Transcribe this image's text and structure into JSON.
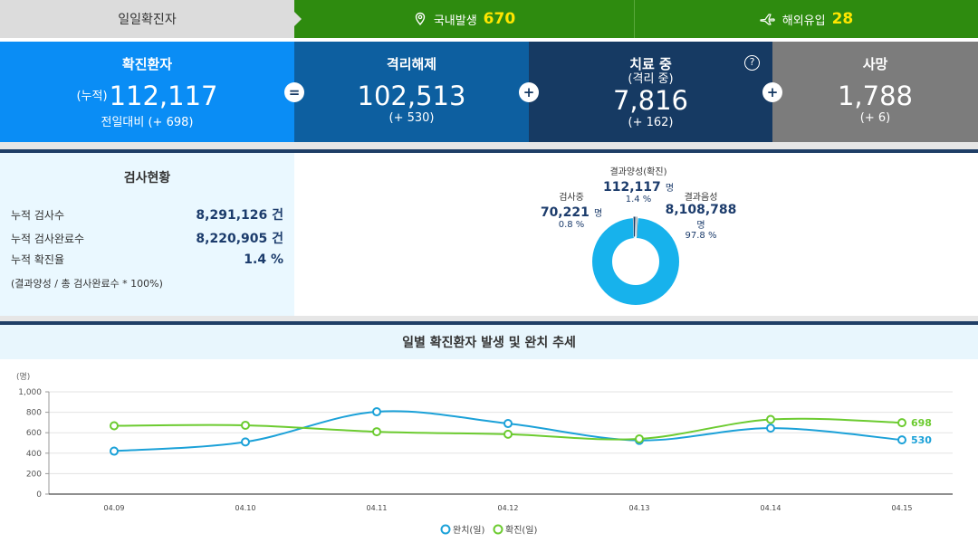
{
  "topbar": {
    "label": "일일확진자",
    "domestic": {
      "label": "국내발생",
      "value": "670",
      "icon": "map-pin-icon"
    },
    "overseas": {
      "label": "해외유입",
      "value": "28",
      "icon": "airplane-icon"
    }
  },
  "summary": {
    "confirmed": {
      "title": "확진환자",
      "prefix": "(누적)",
      "value": "112,117",
      "delta": "전일대비 (+ 698)"
    },
    "released": {
      "title": "격리해제",
      "value": "102,513",
      "delta": "(+ 530)"
    },
    "treating": {
      "title": "치료 중",
      "subtitle": "(격리 중)",
      "value": "7,816",
      "delta": "(+ 162)",
      "help": "?"
    },
    "deaths": {
      "title": "사망",
      "value": "1,788",
      "delta": "(+ 6)"
    },
    "operators": {
      "equals": "=",
      "plus": "+"
    },
    "colors": {
      "confirmed": "#0a8df5",
      "released": "#0d5fa0",
      "treating": "#163a63",
      "deaths": "#7c7c7c"
    }
  },
  "tests": {
    "title": "검사현황",
    "rows": [
      {
        "label": "누적 검사수",
        "value": "8,291,126 건"
      },
      {
        "label": "누적 검사완료수",
        "value": "8,220,905 건"
      },
      {
        "label": "누적 확진율",
        "value": "1.4 %"
      }
    ],
    "note": "(결과양성 / 총 검사완료수 * 100%)"
  },
  "donut": {
    "positive": {
      "label": "결과양성(확진)",
      "value": "112,117",
      "unit": "명",
      "pct": "1.4 %"
    },
    "testing": {
      "label": "검사중",
      "value": "70,221",
      "unit": "명",
      "pct": "0.8 %"
    },
    "negative": {
      "label": "결과음성",
      "value": "8,108,788",
      "unit": "명",
      "pct": "97.8 %"
    }
  },
  "trend": {
    "title": "일별 확진환자 발생 및 완치 추세",
    "legend": {
      "released": "완치(일)",
      "confirmed": "확진(일)"
    },
    "end_labels": {
      "released": "530",
      "confirmed": "698"
    }
  },
  "chart_data": {
    "type": "line",
    "ylabel": "(명)",
    "ylim": [
      0,
      1000
    ],
    "yticks": [
      "0",
      "200",
      "400",
      "600",
      "800",
      "1,000"
    ],
    "categories": [
      "04.09",
      "04.10",
      "04.11",
      "04.12",
      "04.13",
      "04.14",
      "04.15"
    ],
    "series": [
      {
        "name": "완치(일)",
        "color": "#1ba1d8",
        "values": [
          420,
          510,
          805,
          690,
          525,
          645,
          530
        ]
      },
      {
        "name": "확진(일)",
        "color": "#6ccb30",
        "values": [
          668,
          673,
          610,
          585,
          540,
          730,
          698
        ]
      }
    ],
    "grid": true
  }
}
